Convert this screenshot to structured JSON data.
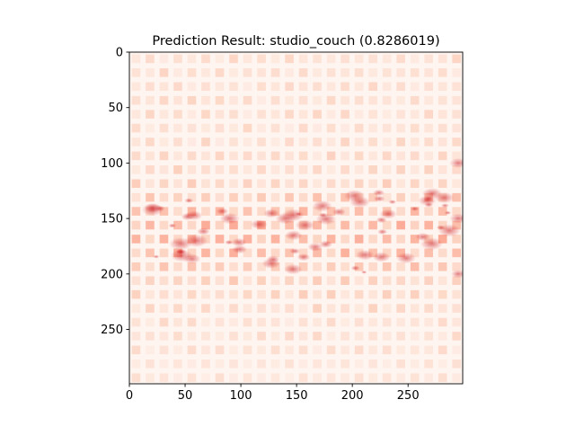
{
  "chart_data": {
    "type": "heatmap",
    "title": "Prediction Result: studio_couch (0.8286019)",
    "xlabel": "",
    "ylabel": "",
    "xlim": [
      0,
      299
    ],
    "ylim": [
      299,
      0
    ],
    "x_ticks": [
      0,
      50,
      100,
      150,
      200,
      250
    ],
    "y_ticks": [
      0,
      50,
      100,
      150,
      200,
      250
    ],
    "x_tick_labels": [
      "0",
      "50",
      "100",
      "150",
      "200",
      "250"
    ],
    "y_tick_labels": [
      "0",
      "50",
      "100",
      "150",
      "200",
      "250"
    ],
    "colormap": "Reds",
    "grid": false,
    "legend": "none",
    "description_colors": {
      "low": "#fff5f0",
      "mid": "#fcae91",
      "high": "#cb181d"
    }
  }
}
